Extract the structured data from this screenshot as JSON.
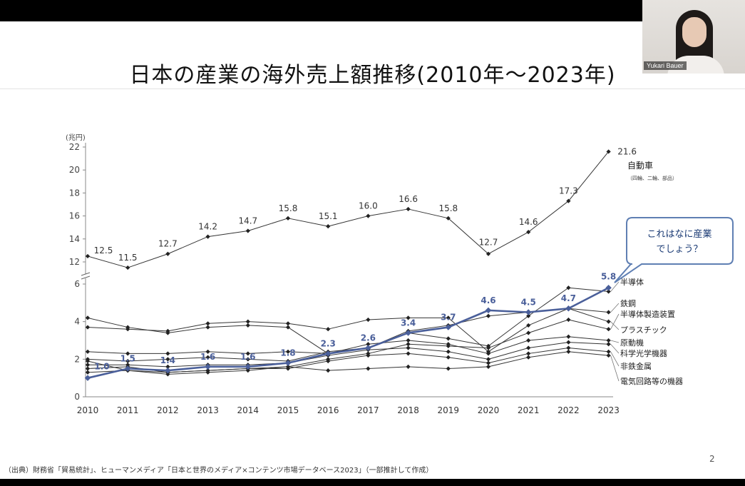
{
  "slide": {
    "title": "日本の産業の海外売上額推移(2010年～2023年)",
    "footer": "（出典）財務省「貿易統計」、ヒューマンメディア「日本と世界のメディア×コンテンツ市場データベース2023」（一部推計して作成）",
    "page_number": "2",
    "callout": [
      "これはなに産業",
      "でしょう？"
    ]
  },
  "video": {
    "participant_name": "Yukari Bauer"
  },
  "chart_data": {
    "type": "line",
    "ylabel": "(兆円)",
    "x": [
      "2010",
      "2011",
      "2012",
      "2013",
      "2014",
      "2015",
      "2016",
      "2017",
      "2018",
      "2019",
      "2020",
      "2021",
      "2022",
      "2023"
    ],
    "upper_ticks": [
      12,
      14,
      16,
      18,
      20,
      22
    ],
    "lower_ticks": [
      0,
      2,
      4,
      6
    ],
    "axis_break": true,
    "ylim_lower": [
      0,
      6.5
    ],
    "ylim_upper": [
      11.5,
      22
    ],
    "series": [
      {
        "name": "自動車",
        "sublabel": "（四輪、二輪、部品）",
        "panel": "upper",
        "values": [
          12.5,
          11.5,
          12.7,
          14.2,
          14.7,
          15.8,
          15.1,
          16.0,
          16.6,
          15.8,
          12.7,
          14.6,
          17.3,
          21.6
        ],
        "labels": [
          "12.5",
          "11.5",
          "12.7",
          "14.2",
          "14.7",
          "15.8",
          "15.1",
          "16.0",
          "16.6",
          "15.8",
          "12.7",
          "14.6",
          "17.3",
          "21.6"
        ],
        "color": "#333333"
      },
      {
        "name": "半導体",
        "panel": "lower",
        "values": [
          2.0,
          1.9,
          2.0,
          2.1,
          2.0,
          1.9,
          2.4,
          2.6,
          3.4,
          3.1,
          2.7,
          4.3,
          5.8,
          5.6
        ],
        "color": "#333333"
      },
      {
        "name": "鉄鋼",
        "panel": "lower",
        "values": [
          4.2,
          3.7,
          3.4,
          3.7,
          3.8,
          3.7,
          2.3,
          2.6,
          3.5,
          3.8,
          4.3,
          4.5,
          4.7,
          4.5
        ],
        "color": "#333333"
      },
      {
        "name": "半導体製造装置",
        "panel": "lower",
        "values": [
          1.3,
          1.4,
          1.2,
          1.3,
          1.4,
          1.6,
          2.0,
          2.3,
          2.8,
          2.7,
          2.6,
          3.4,
          4.1,
          3.6
        ],
        "color": "#333333"
      },
      {
        "name": "プラスチック",
        "panel": "lower",
        "values": [
          3.7,
          3.6,
          3.5,
          3.9,
          4.0,
          3.9,
          3.6,
          4.1,
          4.2,
          4.2,
          2.4,
          3.8,
          4.7,
          4.0
        ],
        "color": "#333333"
      },
      {
        "name": "原動機",
        "panel": "lower",
        "values": [
          2.4,
          2.3,
          2.3,
          2.4,
          2.3,
          2.4,
          2.3,
          2.8,
          3.0,
          2.8,
          2.3,
          3.0,
          3.2,
          3.0
        ],
        "color": "#333333"
      },
      {
        "name": "科学光学機器",
        "panel": "lower",
        "values": [
          1.7,
          1.7,
          1.6,
          1.7,
          1.7,
          1.8,
          2.2,
          2.5,
          2.6,
          2.4,
          2.0,
          2.6,
          2.9,
          2.8
        ],
        "color": "#333333"
      },
      {
        "name": "非鉄金属",
        "panel": "lower",
        "values": [
          1.5,
          1.6,
          1.3,
          1.4,
          1.5,
          1.5,
          1.9,
          2.2,
          2.3,
          2.1,
          1.8,
          2.3,
          2.6,
          2.4
        ],
        "color": "#333333"
      },
      {
        "name": "電気回路等の機器",
        "panel": "lower",
        "values": [
          1.9,
          1.4,
          1.3,
          1.4,
          1.5,
          1.6,
          1.4,
          1.5,
          1.6,
          1.5,
          1.6,
          2.1,
          2.4,
          2.2
        ],
        "color": "#333333"
      },
      {
        "name": "",
        "panel": "lower",
        "highlight": true,
        "values": [
          1.0,
          1.5,
          1.4,
          1.6,
          1.6,
          1.8,
          2.3,
          2.6,
          3.4,
          3.7,
          4.6,
          4.5,
          4.7,
          5.8
        ],
        "labels": [
          "1.0",
          "1.5",
          "1.4",
          "1.6",
          "1.6",
          "1.8",
          "2.3",
          "2.6",
          "3.4",
          "3.7",
          "4.6",
          "4.5",
          "4.7",
          "5.8"
        ],
        "color": "#4a5f9a"
      }
    ]
  }
}
